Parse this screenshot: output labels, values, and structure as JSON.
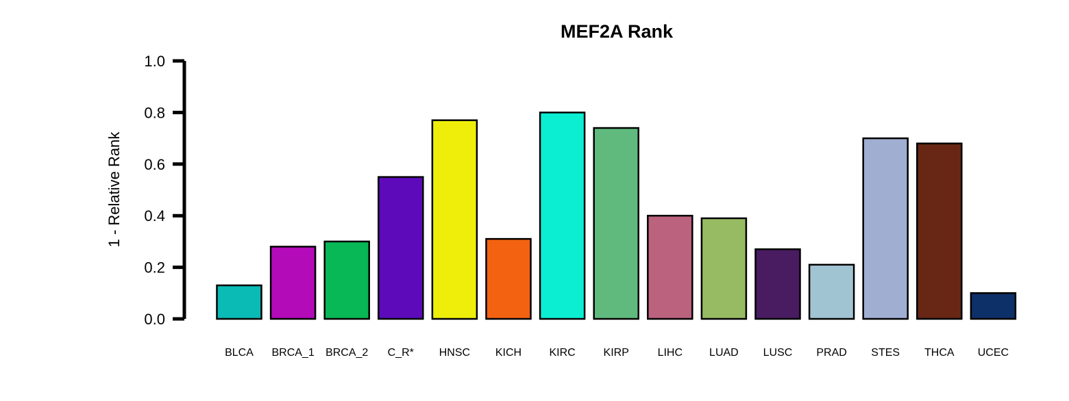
{
  "chart_data": {
    "type": "bar",
    "title": "MEF2A Rank",
    "xlabel": "",
    "ylabel": "1 - Relative Rank",
    "ylim": [
      0,
      1
    ],
    "yticks": [
      "0.0",
      "0.2",
      "0.4",
      "0.6",
      "0.8",
      "1.0"
    ],
    "categories": [
      "BLCA",
      "BRCA_1",
      "BRCA_2",
      "C_R*",
      "HNSC",
      "KICH",
      "KIRC",
      "KIRP",
      "LIHC",
      "LUAD",
      "LUSC",
      "PRAD",
      "STES",
      "THCA",
      "UCEC"
    ],
    "values": [
      0.13,
      0.28,
      0.3,
      0.55,
      0.77,
      0.31,
      0.8,
      0.74,
      0.4,
      0.39,
      0.27,
      0.21,
      0.7,
      0.68,
      0.1
    ],
    "colors": [
      "#0ABAB5",
      "#B30BB8",
      "#08B755",
      "#5D0BBA",
      "#EEEE0A",
      "#F26210",
      "#0CEED2",
      "#60BA7E",
      "#BB627F",
      "#97BB62",
      "#491B61",
      "#A1C4D2",
      "#A0AED2",
      "#672714",
      "#0E3068"
    ],
    "grid": false,
    "legend": "none"
  }
}
